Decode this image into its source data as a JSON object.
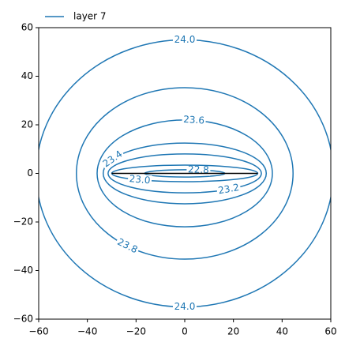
{
  "chart_data": {
    "type": "contour",
    "series": [
      {
        "name": "layer 7",
        "color": "#1f77b4",
        "levels": [
          22.8,
          23.0,
          23.2,
          23.4,
          23.6,
          23.8,
          24.0
        ],
        "value_labels": [
          "22.8",
          "23.0",
          "23.2",
          "23.4",
          "23.6",
          "23.8",
          "24.0"
        ],
        "rx": [
          16.5,
          30,
          31.5,
          33.5,
          36,
          44.5,
          61
        ],
        "ry": [
          1.5,
          3.4,
          8,
          12.5,
          22,
          35.3,
          55
        ]
      }
    ],
    "segment": {
      "x": [
        -30,
        30
      ],
      "y": [
        0,
        0
      ],
      "color": "#000000"
    },
    "xlim": [
      -60,
      60
    ],
    "ylim": [
      -60,
      60
    ],
    "xticks": [
      {
        "value": -60,
        "label": "−60"
      },
      {
        "value": -40,
        "label": "−40"
      },
      {
        "value": -20,
        "label": "−20"
      },
      0,
      20,
      40,
      60
    ],
    "yticks": [
      {
        "value": -60,
        "label": "−60"
      },
      {
        "value": -40,
        "label": "−40"
      },
      {
        "value": -20,
        "label": "−20"
      },
      0,
      20,
      40,
      60
    ],
    "legend": "upper left"
  }
}
